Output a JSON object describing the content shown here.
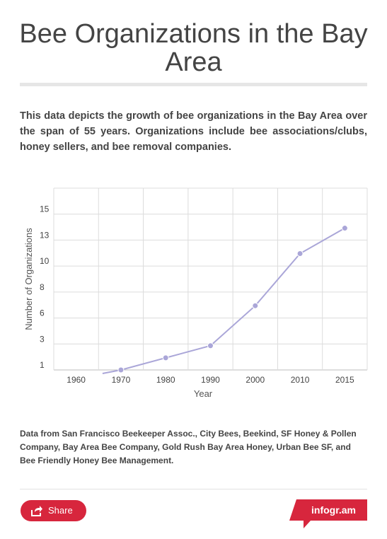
{
  "title": "Bee Organizations in the Bay Area",
  "description": "This data depicts the growth of bee organizations in the Bay Area over the span of 55 years. Organizations include bee associations/clubs, honey sellers, and bee removal companies.",
  "chart_data": {
    "type": "line",
    "xlabel": "Year",
    "ylabel": "Number of Organizations",
    "categories": [
      "1960",
      "1970",
      "1980",
      "1990",
      "2000",
      "2010",
      "2015"
    ],
    "y_tick_labels": [
      "1",
      "3",
      "6",
      "8",
      "10",
      "13",
      "15"
    ],
    "ylim": [
      0,
      15
    ],
    "grid": true,
    "series": [
      {
        "x": [
          1970,
          1980,
          1990,
          2000,
          2010,
          2015
        ],
        "values": [
          0,
          1.0,
          2.0,
          5.3,
          9.6,
          11.7
        ]
      }
    ],
    "line_color": "#aaa6d8",
    "marker_color": "#aaa6d8"
  },
  "source": "Data from San Francisco Beekeeper Assoc., City Bees, Beekind, SF Honey & Pollen Company, Bay Area Bee Company, Gold Rush Bay Area Honey, Urban Bee SF, and Bee Friendly Honey Bee Management.",
  "footer": {
    "share_label": "Share",
    "share_icon": "share-icon",
    "brand_label": "infogr.am",
    "accent_color": "#d7263d"
  }
}
